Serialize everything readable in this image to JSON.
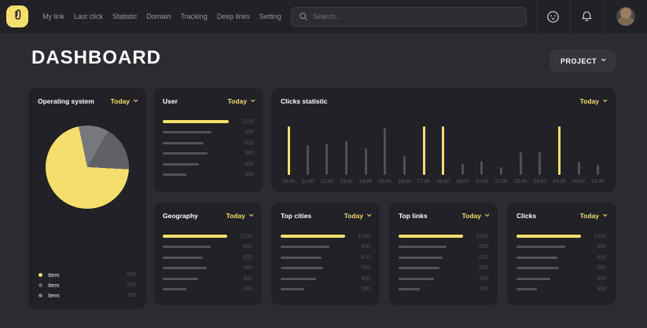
{
  "navbar": {
    "logo_color": "#F6DE6D",
    "items": [
      {
        "label": "My link"
      },
      {
        "label": "Last click"
      },
      {
        "label": "Statistic"
      },
      {
        "label": "Domain"
      },
      {
        "label": "Tracking"
      },
      {
        "label": "Deep links"
      },
      {
        "label": "Setting"
      }
    ],
    "search": {
      "placeholder": "Search..."
    }
  },
  "page": {
    "title": "DASHBOARD",
    "project_button": {
      "label": "PROJECT"
    }
  },
  "colors": {
    "accent_yellow": "#F6DE6D",
    "bar_gray": "#53545A",
    "card_bg": "#212126",
    "page_bg": "#2B2B31"
  },
  "cards": {
    "operating_system": {
      "title": "Operating system",
      "period": "Today",
      "chart_data": {
        "type": "pie",
        "items": [
          {
            "label": "Item",
            "value": 650,
            "color": "#F6DE6D"
          },
          {
            "label": "Item",
            "value": 285,
            "color": "#606166"
          },
          {
            "label": "Item",
            "value": 185,
            "color": "#77787D"
          }
        ],
        "render": {
          "start_deg": 93,
          "segments": [
            {
              "color": "#F6DE6D",
              "deg": 255
            },
            {
              "color": "#77787D",
              "deg": 42
            },
            {
              "color": "#606166",
              "deg": 63
            }
          ]
        }
      }
    },
    "user": {
      "title": "User",
      "period": "Today",
      "chart_data": {
        "type": "bar",
        "orientation": "horizontal",
        "values": [
          1200,
          850,
          620,
          585,
          400,
          300
        ],
        "widths_pct": [
          100,
          74,
          62,
          68,
          55,
          36
        ],
        "highlight_color": "#F6DE6D",
        "bar_color": "#53545A"
      }
    },
    "clicks_statistic": {
      "title": "Clicks statistic",
      "period": "Today",
      "chart_data": {
        "type": "bar",
        "orientation": "vertical",
        "categories": [
          "10:00",
          "11:00",
          "12:00",
          "13:00",
          "14:00",
          "15:00",
          "16:00",
          "17:00",
          "18:00",
          "19:00",
          "20:00",
          "21:00",
          "22:00",
          "23:00",
          "24:00",
          "00:00",
          "01:00"
        ],
        "values": [
          100,
          62,
          64,
          70,
          55,
          97,
          38,
          100,
          100,
          22,
          29,
          16,
          47,
          46,
          100,
          27,
          21
        ],
        "highlight_indices": [
          0,
          7,
          8,
          14
        ],
        "highlight_color": "#F6DE6D",
        "bar_color": "#505156",
        "ylim": [
          0,
          100
        ]
      }
    },
    "geography": {
      "title": "Geography",
      "period": "Today",
      "chart_data": {
        "type": "bar",
        "orientation": "horizontal",
        "values": [
          1200,
          850,
          620,
          585,
          400,
          300
        ],
        "widths_pct": [
          100,
          74,
          62,
          68,
          55,
          36
        ],
        "highlight_color": "#F6DE6D",
        "bar_color": "#53545A"
      }
    },
    "top_cities": {
      "title": "Top cities",
      "period": "Today",
      "chart_data": {
        "type": "bar",
        "orientation": "horizontal",
        "values": [
          1200,
          850,
          620,
          585,
          400,
          300
        ],
        "widths_pct": [
          100,
          76,
          64,
          66,
          55,
          36
        ],
        "highlight_color": "#F6DE6D",
        "bar_color": "#53545A"
      }
    },
    "top_links": {
      "title": "Top links",
      "period": "Today",
      "chart_data": {
        "type": "bar",
        "orientation": "horizontal",
        "values": [
          1200,
          850,
          620,
          585,
          400,
          300
        ],
        "widths_pct": [
          100,
          74,
          68,
          64,
          55,
          33
        ],
        "highlight_color": "#F6DE6D",
        "bar_color": "#53545A"
      }
    },
    "clicks": {
      "title": "Clicks",
      "period": "Today",
      "chart_data": {
        "type": "bar",
        "orientation": "horizontal",
        "values": [
          1200,
          850,
          620,
          585,
          400,
          300
        ],
        "widths_pct": [
          100,
          76,
          64,
          66,
          53,
          32
        ],
        "highlight_color": "#F6DE6D",
        "bar_color": "#53545A"
      }
    }
  }
}
